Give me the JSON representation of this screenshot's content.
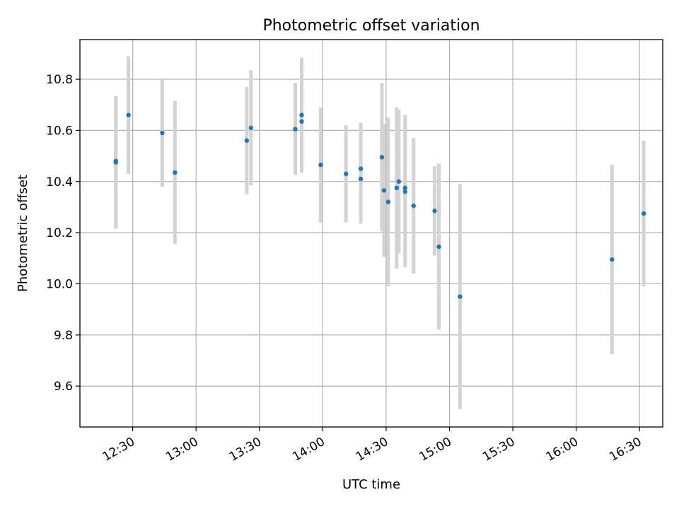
{
  "chart_data": {
    "type": "scatter",
    "title": "Photometric offset variation",
    "xlabel": "UTC time",
    "ylabel": "Photometric offset",
    "grid": true,
    "xlim": [
      "12:05",
      "16:41"
    ],
    "ylim": [
      9.44,
      10.955
    ],
    "xticks": [
      "12:30",
      "13:00",
      "13:30",
      "14:00",
      "14:30",
      "15:00",
      "15:30",
      "16:00",
      "16:30"
    ],
    "yticks": [
      "9.6",
      "9.8",
      "10.0",
      "10.2",
      "10.4",
      "10.6",
      "10.8"
    ],
    "point_color": "#1f77b4",
    "errorbar_color": "#d3d3d3",
    "points": [
      {
        "x": "12:22",
        "y": 10.475,
        "err": 0.26
      },
      {
        "x": "12:22",
        "y": 10.48,
        "err": 0.25
      },
      {
        "x": "12:28",
        "y": 10.66,
        "err": 0.23
      },
      {
        "x": "12:44",
        "y": 10.59,
        "err": 0.21
      },
      {
        "x": "12:50",
        "y": 10.435,
        "err": 0.28
      },
      {
        "x": "13:24",
        "y": 10.56,
        "err": 0.21
      },
      {
        "x": "13:26",
        "y": 10.61,
        "err": 0.225
      },
      {
        "x": "13:47",
        "y": 10.605,
        "err": 0.18
      },
      {
        "x": "13:50",
        "y": 10.635,
        "err": 0.2
      },
      {
        "x": "13:50",
        "y": 10.66,
        "err": 0.225
      },
      {
        "x": "13:59",
        "y": 10.465,
        "err": 0.225
      },
      {
        "x": "14:11",
        "y": 10.43,
        "err": 0.19
      },
      {
        "x": "14:18",
        "y": 10.45,
        "err": 0.18
      },
      {
        "x": "14:18",
        "y": 10.41,
        "err": 0.175
      },
      {
        "x": "14:28",
        "y": 10.495,
        "err": 0.29
      },
      {
        "x": "14:29",
        "y": 10.365,
        "err": 0.26
      },
      {
        "x": "14:31",
        "y": 10.32,
        "err": 0.33
      },
      {
        "x": "14:35",
        "y": 10.375,
        "err": 0.315
      },
      {
        "x": "14:36",
        "y": 10.4,
        "err": 0.28
      },
      {
        "x": "14:39",
        "y": 10.375,
        "err": 0.285
      },
      {
        "x": "14:39",
        "y": 10.36,
        "err": 0.295
      },
      {
        "x": "14:43",
        "y": 10.305,
        "err": 0.265
      },
      {
        "x": "14:53",
        "y": 10.285,
        "err": 0.175
      },
      {
        "x": "14:55",
        "y": 10.145,
        "err": 0.325
      },
      {
        "x": "15:05",
        "y": 9.95,
        "err": 0.44
      },
      {
        "x": "16:17",
        "y": 10.095,
        "err": 0.37
      },
      {
        "x": "16:32",
        "y": 10.275,
        "err": 0.285
      }
    ]
  }
}
